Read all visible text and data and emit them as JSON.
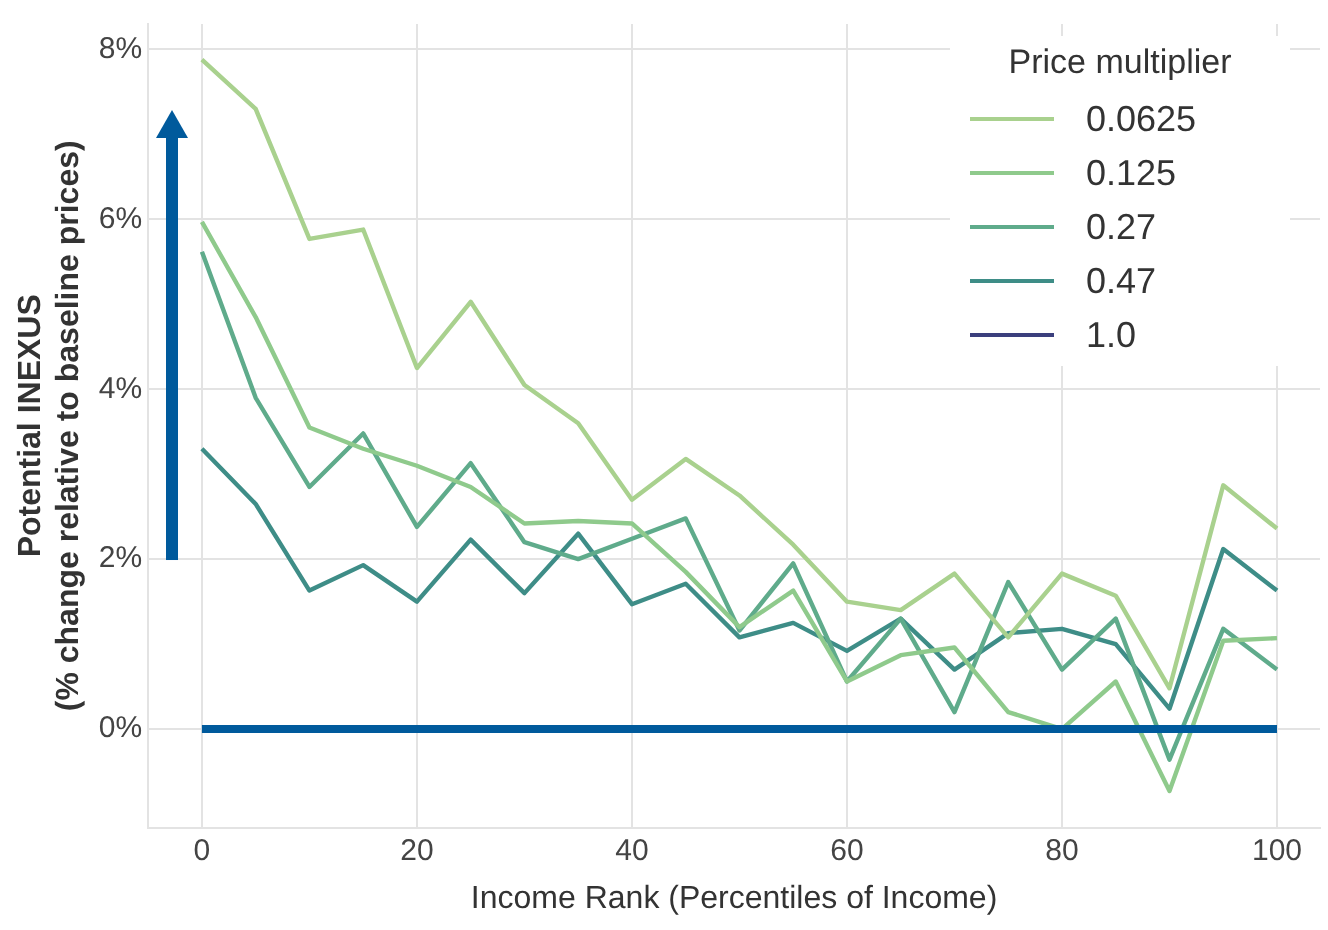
{
  "chart_data": {
    "type": "line",
    "xlabel": "Income Rank (Percentiles of Income)",
    "ylabel": "Potential INEXUS\n(% change relative to baseline prices)",
    "legend_title": "Price multiplier",
    "x": [
      0,
      5,
      10,
      15,
      20,
      25,
      30,
      35,
      40,
      45,
      50,
      55,
      60,
      65,
      70,
      75,
      80,
      85,
      90,
      95,
      100
    ],
    "series": [
      {
        "name": "0.0625",
        "color": "#a9d18e",
        "values": [
          7.88,
          7.3,
          5.77,
          5.88,
          4.25,
          5.03,
          4.05,
          3.6,
          2.7,
          3.18,
          2.75,
          2.17,
          1.5,
          1.4,
          1.83,
          1.08,
          1.83,
          1.57,
          0.48,
          2.87,
          2.36
        ]
      },
      {
        "name": "0.125",
        "color": "#8fca8c",
        "values": [
          5.97,
          4.85,
          3.55,
          3.3,
          3.1,
          2.85,
          2.42,
          2.45,
          2.42,
          1.85,
          1.2,
          1.63,
          0.56,
          0.87,
          0.96,
          0.2,
          0.0,
          0.56,
          -0.73,
          1.04,
          1.07
        ]
      },
      {
        "name": "0.27",
        "color": "#5fab8b",
        "values": [
          5.62,
          3.9,
          2.85,
          3.48,
          2.38,
          3.13,
          2.2,
          2.0,
          2.24,
          2.48,
          1.16,
          1.95,
          0.56,
          1.3,
          0.2,
          1.73,
          0.7,
          1.3,
          -0.36,
          1.18,
          0.7
        ]
      },
      {
        "name": "0.47",
        "color": "#3e8d87",
        "values": [
          3.3,
          2.65,
          1.63,
          1.93,
          1.5,
          2.23,
          1.6,
          2.3,
          1.47,
          1.71,
          1.08,
          1.25,
          0.92,
          1.3,
          0.7,
          1.13,
          1.18,
          1.0,
          0.24,
          2.12,
          1.63
        ]
      },
      {
        "name": "1.0",
        "color": "#3b3f7d",
        "values": [
          null,
          null,
          null,
          null,
          null,
          null,
          null,
          null,
          null,
          null,
          null,
          null,
          null,
          null,
          null,
          null,
          null,
          null,
          null,
          null,
          null
        ]
      }
    ],
    "ref_lines": [
      {
        "axis": "y",
        "value": 0,
        "color": "#005a9c"
      }
    ],
    "xlim": [
      -5,
      104
    ],
    "xticks": [
      0,
      20,
      40,
      60,
      80,
      100
    ],
    "ylim": [
      -1.16,
      8.3
    ],
    "yticks": [
      {
        "value": 0,
        "label": "0%"
      },
      {
        "value": 2,
        "label": "2%"
      },
      {
        "value": 4,
        "label": "4%"
      },
      {
        "value": 6,
        "label": "6%"
      },
      {
        "value": 8,
        "label": "8%"
      }
    ],
    "grid": true,
    "legend": "top right",
    "marker": "none",
    "line_style": "solid"
  }
}
